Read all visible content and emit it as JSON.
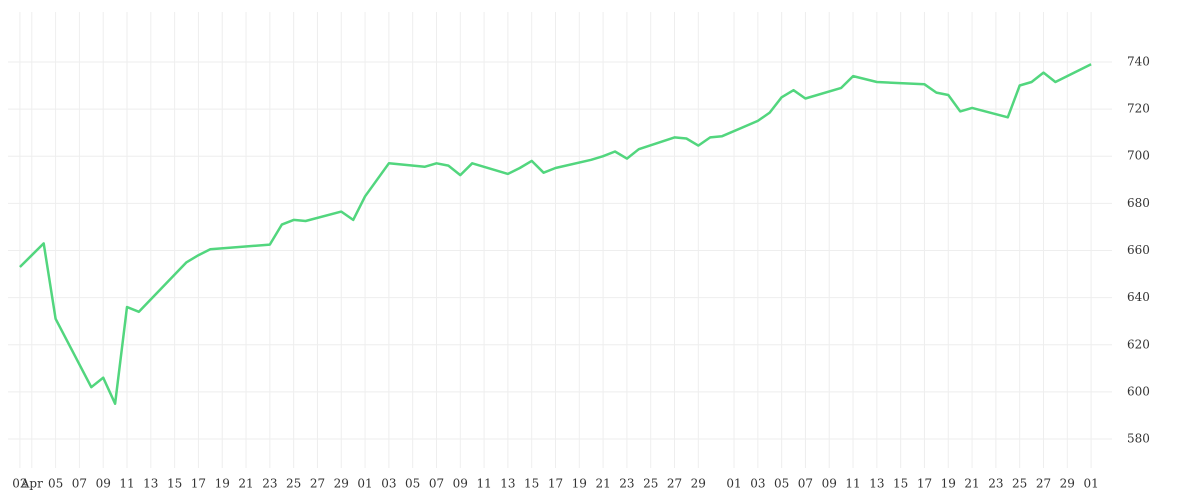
{
  "chart_data": {
    "type": "line",
    "x": [
      "04-02",
      "04-03",
      "04-04",
      "04-05",
      "04-08",
      "04-09",
      "04-10",
      "04-11",
      "04-12",
      "04-16",
      "04-17",
      "04-18",
      "04-23",
      "04-24",
      "04-25",
      "04-26",
      "04-29",
      "04-30",
      "05-01",
      "05-03",
      "05-06",
      "05-07",
      "05-08",
      "05-09",
      "05-10",
      "05-13",
      "05-14",
      "05-15",
      "05-16",
      "05-17",
      "05-20",
      "05-21",
      "05-22",
      "05-23",
      "05-24",
      "05-27",
      "05-28",
      "05-29",
      "05-30",
      "05-31",
      "06-03",
      "06-04",
      "06-05",
      "06-06",
      "06-07",
      "06-10",
      "06-11",
      "06-13",
      "06-17",
      "06-18",
      "06-19",
      "06-20",
      "06-21",
      "06-24",
      "06-25",
      "06-26",
      "06-27",
      "06-28",
      "07-01"
    ],
    "series": [
      {
        "color": "#52d67e",
        "values": [
          653,
          658,
          663,
          631,
          602,
          606,
          595,
          636,
          634,
          655,
          658,
          660.5,
          662.5,
          671,
          673,
          672.5,
          676.5,
          673,
          683,
          697,
          695.5,
          697,
          696,
          692,
          697,
          692.5,
          695,
          698,
          693,
          695,
          698.5,
          700,
          702,
          699,
          703,
          708,
          707.5,
          704.5,
          708,
          708.5,
          715,
          718.5,
          725,
          728,
          724.5,
          729,
          734,
          731.5,
          730.5,
          727,
          726,
          719,
          720.5,
          716.5,
          730,
          731.5,
          735.5,
          731.5,
          739
        ]
      }
    ],
    "xlim": [
      "04-01",
      "07-02"
    ],
    "xticks": [
      {
        "value": "04-02",
        "label": "02"
      },
      {
        "value": "04-03",
        "label": "Apr"
      },
      {
        "value": "04-05",
        "label": "05"
      },
      {
        "value": "04-07",
        "label": "07"
      },
      {
        "value": "04-09",
        "label": "09"
      },
      {
        "value": "04-11",
        "label": "11"
      },
      {
        "value": "04-13",
        "label": "13"
      },
      {
        "value": "04-15",
        "label": "15"
      },
      {
        "value": "04-17",
        "label": "17"
      },
      {
        "value": "04-19",
        "label": "19"
      },
      {
        "value": "04-21",
        "label": "21"
      },
      {
        "value": "04-23",
        "label": "23"
      },
      {
        "value": "04-25",
        "label": "25"
      },
      {
        "value": "04-27",
        "label": "27"
      },
      {
        "value": "04-29",
        "label": "29"
      },
      {
        "value": "05-01",
        "label": "01"
      },
      {
        "value": "05-03",
        "label": "03"
      },
      {
        "value": "05-05",
        "label": "05"
      },
      {
        "value": "05-07",
        "label": "07"
      },
      {
        "value": "05-09",
        "label": "09"
      },
      {
        "value": "05-11",
        "label": "11"
      },
      {
        "value": "05-13",
        "label": "13"
      },
      {
        "value": "05-15",
        "label": "15"
      },
      {
        "value": "05-17",
        "label": "17"
      },
      {
        "value": "05-19",
        "label": "19"
      },
      {
        "value": "05-21",
        "label": "21"
      },
      {
        "value": "05-23",
        "label": "23"
      },
      {
        "value": "05-25",
        "label": "25"
      },
      {
        "value": "05-27",
        "label": "27"
      },
      {
        "value": "05-29",
        "label": "29"
      },
      {
        "value": "06-01",
        "label": "01"
      },
      {
        "value": "06-03",
        "label": "03"
      },
      {
        "value": "06-05",
        "label": "05"
      },
      {
        "value": "06-07",
        "label": "07"
      },
      {
        "value": "06-09",
        "label": "09"
      },
      {
        "value": "06-11",
        "label": "11"
      },
      {
        "value": "06-13",
        "label": "13"
      },
      {
        "value": "06-15",
        "label": "15"
      },
      {
        "value": "06-17",
        "label": "17"
      },
      {
        "value": "06-19",
        "label": "19"
      },
      {
        "value": "06-21",
        "label": "21"
      },
      {
        "value": "06-23",
        "label": "23"
      },
      {
        "value": "06-25",
        "label": "25"
      },
      {
        "value": "06-27",
        "label": "27"
      },
      {
        "value": "06-29",
        "label": "29"
      },
      {
        "value": "07-01",
        "label": "01"
      }
    ],
    "ylim": [
      567.7,
      761.2
    ],
    "yticks": [
      580,
      600,
      620,
      640,
      660,
      680,
      700,
      720,
      740
    ],
    "grid": true
  }
}
